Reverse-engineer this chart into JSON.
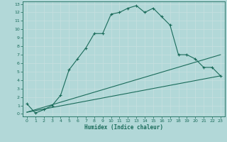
{
  "xlabel": "Humidex (Indice chaleur)",
  "bg_color": "#b2d8d8",
  "grid_color": "#d0e8e8",
  "line_color": "#1a6b5a",
  "xlim": [
    -0.5,
    23.5
  ],
  "ylim": [
    -0.3,
    13.3
  ],
  "xticks": [
    0,
    1,
    2,
    3,
    4,
    5,
    6,
    7,
    8,
    9,
    10,
    11,
    12,
    13,
    14,
    15,
    16,
    17,
    18,
    19,
    20,
    21,
    22,
    23
  ],
  "yticks": [
    0,
    1,
    2,
    3,
    4,
    5,
    6,
    7,
    8,
    9,
    10,
    11,
    12,
    13
  ],
  "curve1_x": [
    0,
    1,
    2,
    3,
    4,
    5,
    6,
    7,
    8,
    9,
    10,
    11,
    12,
    13,
    14,
    15,
    16,
    17,
    18,
    19,
    20,
    21,
    22,
    23
  ],
  "curve1_y": [
    1.2,
    0.1,
    0.5,
    1.0,
    2.2,
    5.2,
    6.5,
    7.8,
    9.5,
    9.5,
    11.8,
    12.0,
    12.5,
    12.8,
    12.0,
    12.5,
    11.5,
    10.5,
    7.0,
    7.0,
    6.5,
    5.5,
    5.5,
    4.5
  ],
  "curve2_x": [
    0,
    23
  ],
  "curve2_y": [
    0.2,
    7.0
  ],
  "curve3_x": [
    0,
    23
  ],
  "curve3_y": [
    0.2,
    4.5
  ],
  "marker": "+"
}
